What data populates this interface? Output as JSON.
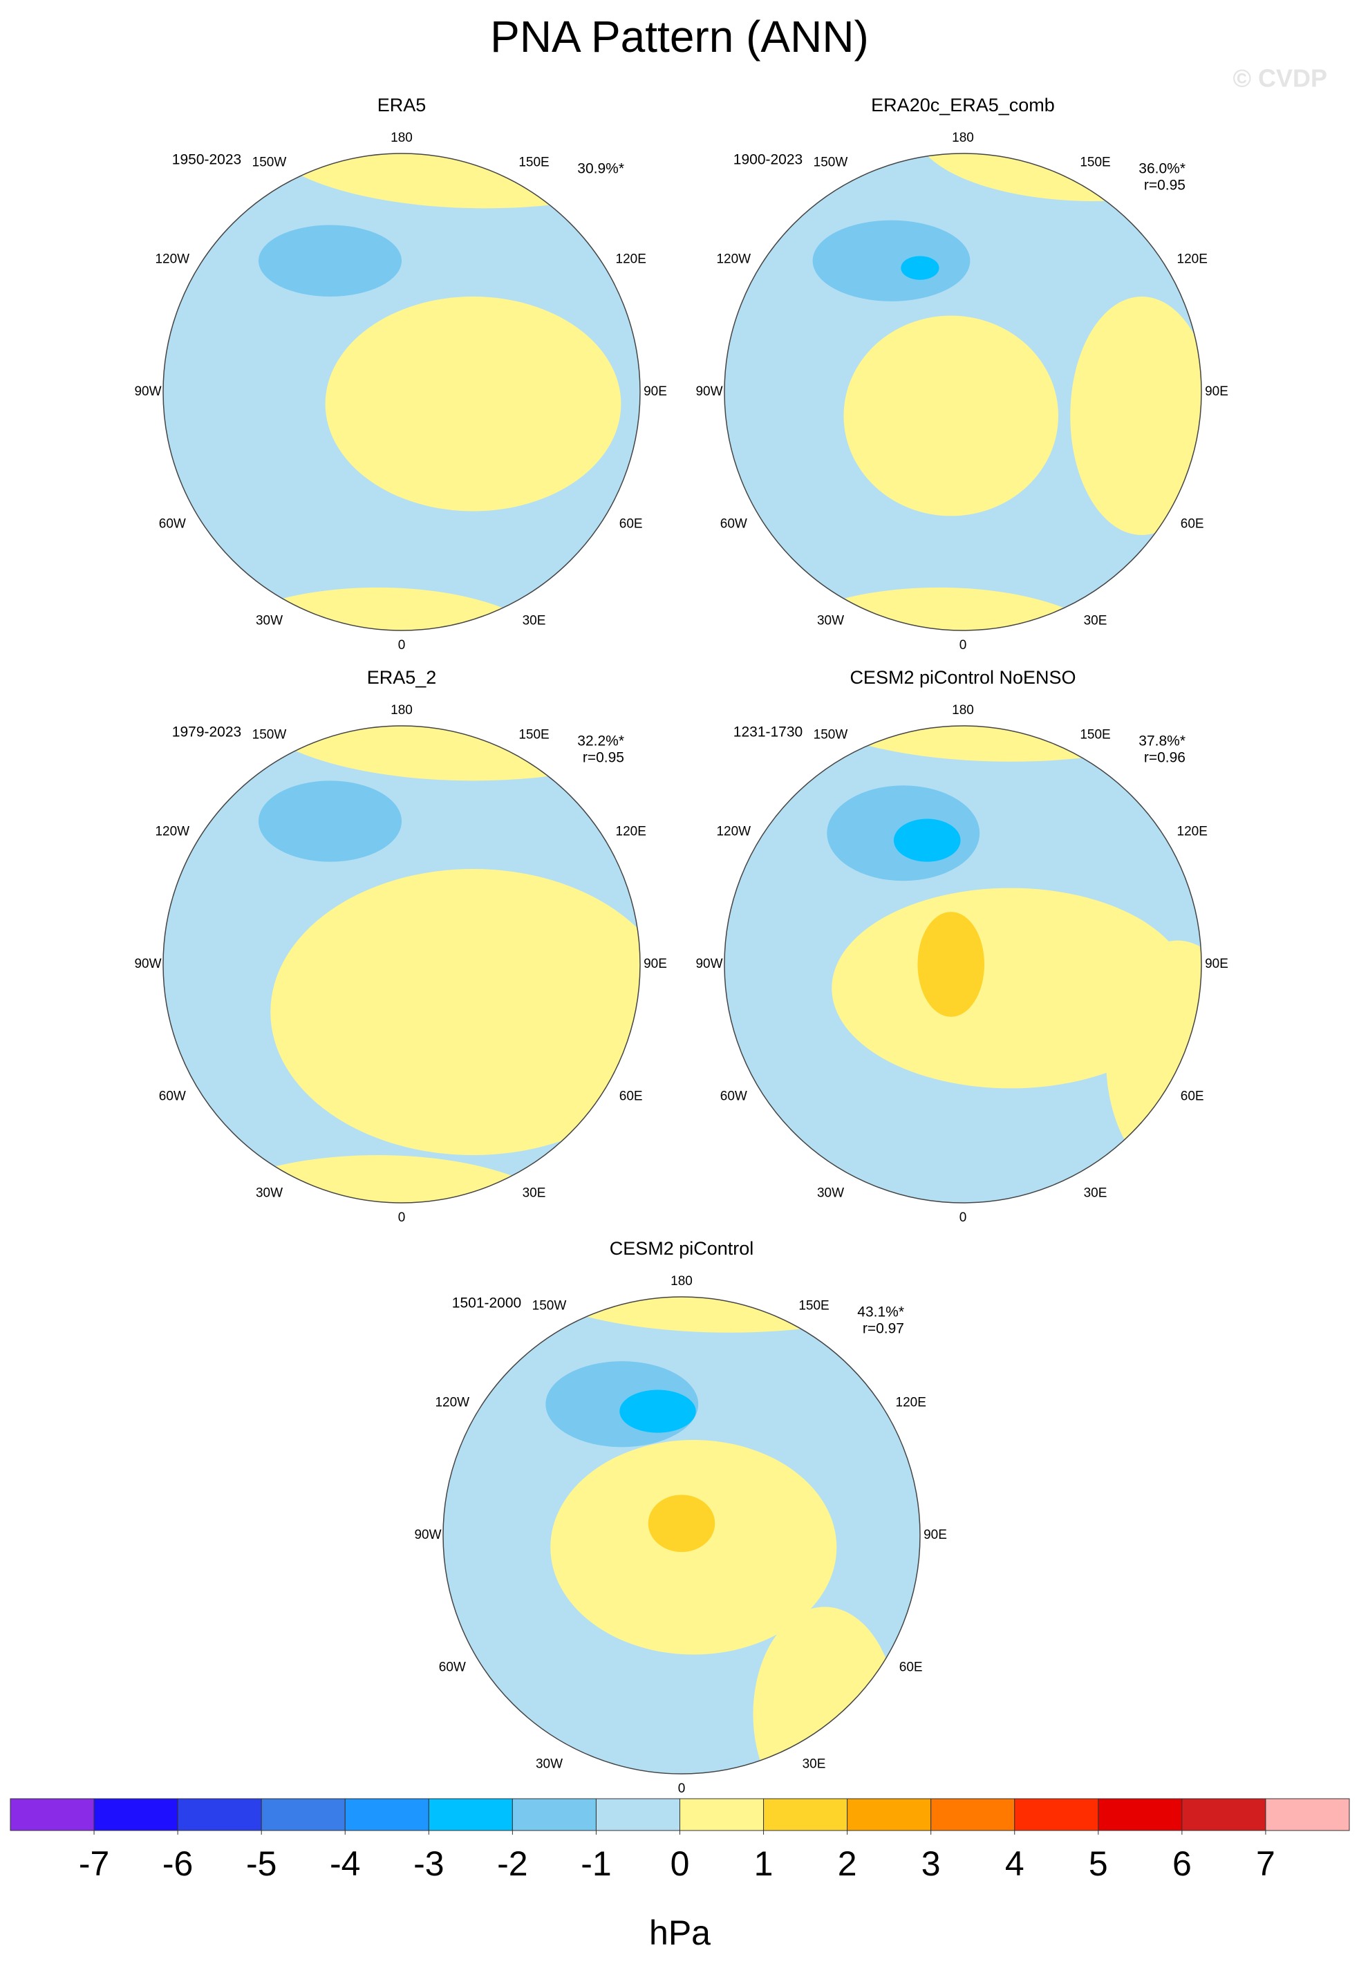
{
  "title": "PNA Pattern (ANN)",
  "watermark": "© CVDP",
  "longitude_labels": [
    "180",
    "150E",
    "120E",
    "90E",
    "60E",
    "30E",
    "0",
    "30W",
    "60W",
    "90W",
    "120W",
    "150W"
  ],
  "panels": [
    {
      "title": "ERA5",
      "period": "1950-2023",
      "pct": "30.9%*"
    },
    {
      "title": "ERA20c_ERA5_comb",
      "period": "1900-2023",
      "pct": "36.0%*",
      "r": "r=0.95"
    },
    {
      "title": "ERA5_2",
      "period": "1979-2023",
      "pct": "32.2%*",
      "r": "r=0.95"
    },
    {
      "title": "CESM2 piControl NoENSO",
      "period": "1231-1730",
      "pct": "37.8%*",
      "r": "r=0.96"
    },
    {
      "title": "CESM2 piControl",
      "period": "1501-2000",
      "pct": "43.1%*",
      "r": "r=0.97"
    }
  ],
  "colorbar": {
    "colors": [
      "#8a2be8",
      "#1e10ff",
      "#2a40ec",
      "#3a7ce8",
      "#1e96ff",
      "#00c0ff",
      "#78c8f0",
      "#b4dff3",
      "#fff690",
      "#ffd42a",
      "#ffa500",
      "#ff7800",
      "#ff2d00",
      "#e60000",
      "#d21e1e",
      "#ffb4b4"
    ],
    "ticks": [
      -7,
      -6,
      -5,
      -4,
      -3,
      -2,
      -1,
      0,
      1,
      2,
      3,
      4,
      5,
      6,
      7
    ],
    "unit": "hPa"
  }
}
